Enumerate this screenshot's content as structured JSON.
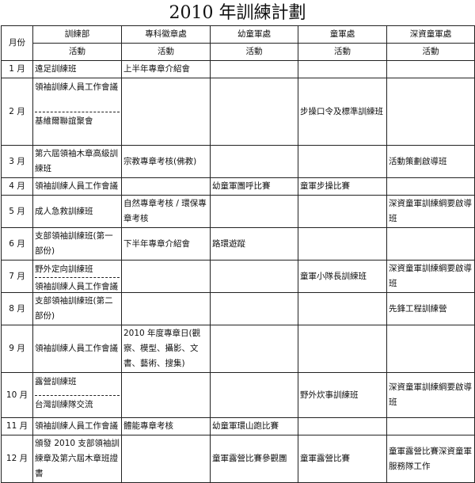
{
  "title": "2010 年訓練計劃",
  "header": {
    "month": "月份",
    "departments": [
      "訓練部",
      "專科徽章處",
      "幼童軍處",
      "童軍處",
      "深資童軍處"
    ],
    "sub": "活動"
  },
  "rows": [
    {
      "month": "1 月",
      "cells": [
        "遠足訓練班",
        "上半年專章介紹會",
        "",
        "",
        ""
      ]
    },
    {
      "month": "2 月",
      "cells": [
        [
          "領袖訓練人員工作會議",
          "基維爾聯誼聚會"
        ],
        "",
        "",
        "步操口令及標準訓練班",
        ""
      ]
    },
    {
      "month": "3 月",
      "cells": [
        "第六屆領袖木章高級訓練班",
        "宗教專章考核(佛教)",
        "",
        "",
        "活動策劃啟導班"
      ]
    },
    {
      "month": "4 月",
      "cells": [
        "領袖訓練人員工作會議",
        "",
        "幼童軍團呼比賽",
        "童軍步操比賽",
        ""
      ]
    },
    {
      "month": "5 月",
      "cells": [
        "成人急救訓練班",
        "自然專章考核 / 環保專章考核",
        "",
        "",
        "深資童軍訓練綱要啟導班"
      ]
    },
    {
      "month": "6 月",
      "cells": [
        "支部領袖訓練班(第一部份)",
        "下半年專章介紹會",
        "路環遊蹤",
        "",
        ""
      ]
    },
    {
      "month": "7 月",
      "cells": [
        [
          "野外定向訓練班",
          "領袖訓練人員工作會議"
        ],
        "",
        "",
        "童軍小隊長訓練班",
        "深資童軍訓練綱要啟導班"
      ]
    },
    {
      "month": "8 月",
      "cells": [
        "支部領袖訓練班(第二部份)",
        "",
        "",
        "",
        "先鋒工程訓練營"
      ]
    },
    {
      "month": "9 月",
      "cells": [
        "領袖訓練人員工作會議",
        "2010 年度專章日(觀察、模型、攝影、文書、藝術、搜集)",
        "",
        "",
        ""
      ]
    },
    {
      "month": "10 月",
      "cells": [
        [
          "露營訓練班",
          "台灣訓練隊交流"
        ],
        "",
        "",
        "野外炊事訓練班",
        "深資童軍訓練綱要啟導班"
      ]
    },
    {
      "month": "11 月",
      "cells": [
        "領袖訓練人員工作會議",
        "體能專章考核",
        "幼童軍環山跑比賽",
        "",
        ""
      ]
    },
    {
      "month": "12 月",
      "cells": [
        "頒發 2010 支部領袖訓練章及第六屆木章班證書",
        "",
        "童軍露營比賽參觀團",
        "童軍露營比賽",
        "童軍露營比賽深資童軍服務隊工作"
      ]
    }
  ]
}
